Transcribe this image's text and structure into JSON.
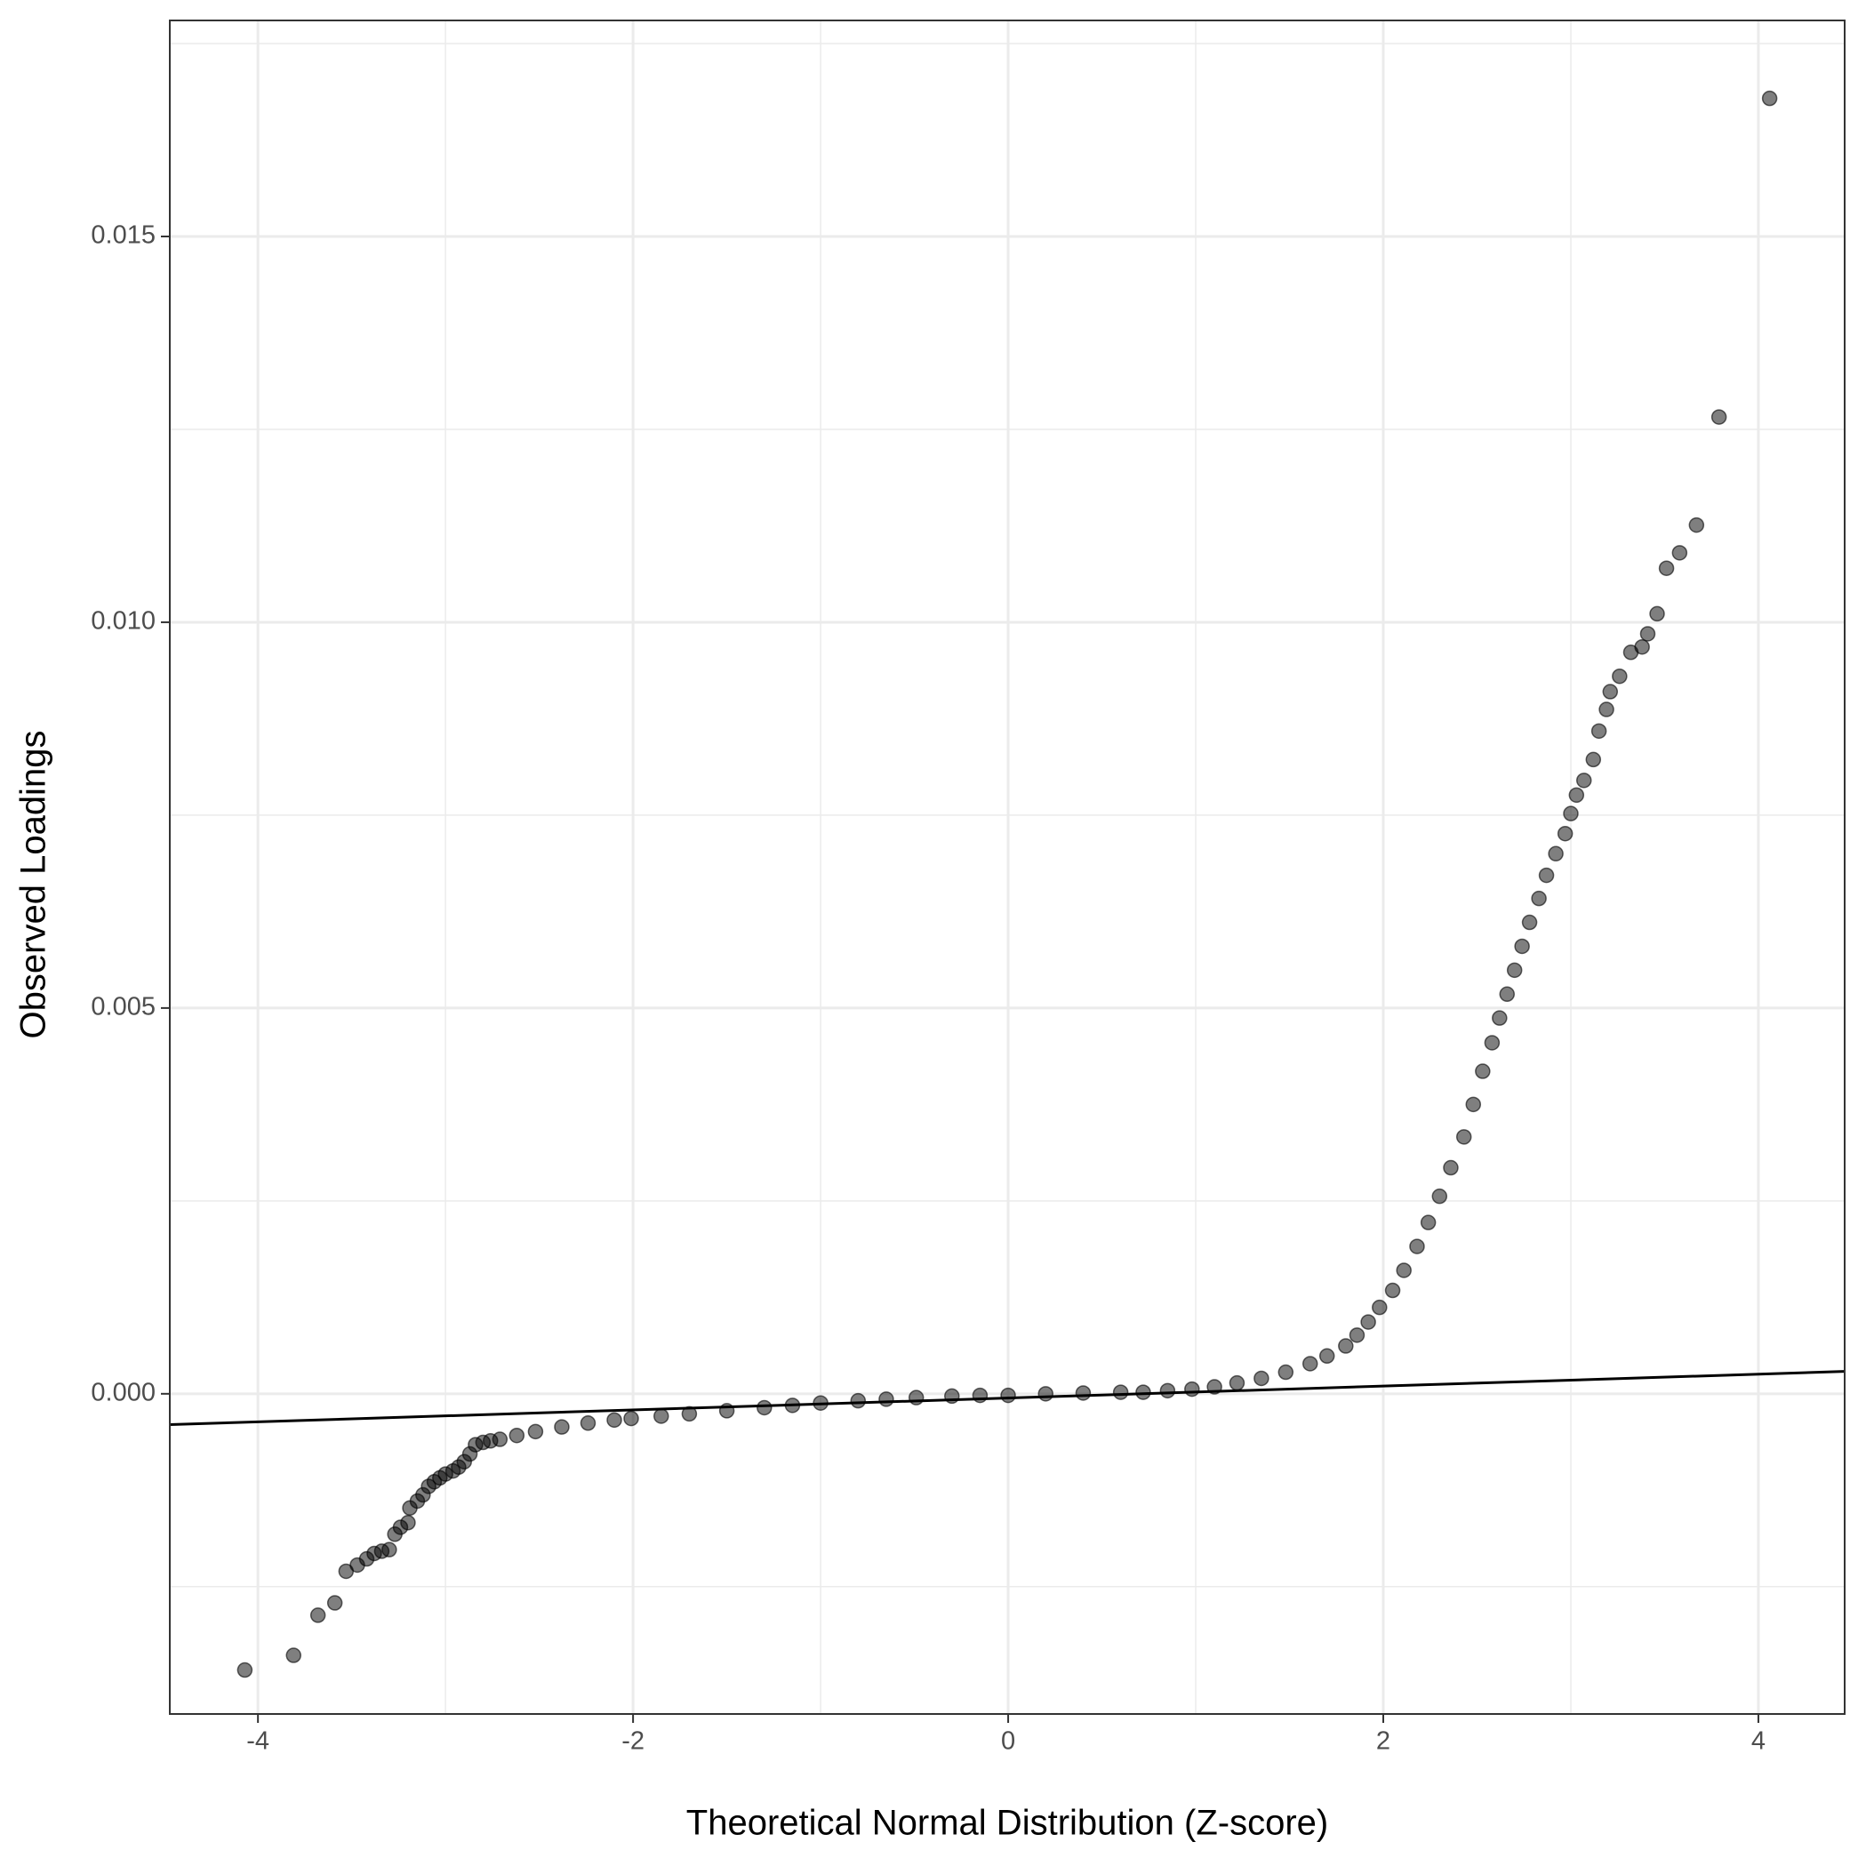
{
  "chart_data": {
    "type": "scatter",
    "x_label": "Theoretical Normal Distribution (Z-score)",
    "y_label": "Observed Loadings",
    "xlim": [
      -4.47,
      4.46
    ],
    "ylim": [
      -0.00415,
      0.0178
    ],
    "xticks": [
      -4,
      -2,
      0,
      2,
      4
    ],
    "x_minor_grid": [
      -3,
      -1,
      1,
      3
    ],
    "yticks": [
      {
        "value": 0,
        "label": "0.000"
      },
      {
        "value": 0.005,
        "label": "0.005"
      },
      {
        "value": 0.01,
        "label": "0.010"
      },
      {
        "value": 0.015,
        "label": "0.015"
      }
    ],
    "y_minor_grid": [
      -0.0025,
      0.0025,
      0.0075,
      0.0125,
      0.0175
    ],
    "grid": true,
    "color": "#000000",
    "reference_line": {
      "x": [
        -4.47,
        4.46
      ],
      "y": [
        -0.0004,
        0.00029
      ]
    },
    "series": [
      {
        "name": "Loadings",
        "color": "#000000",
        "x": [
          -4.07,
          -3.81,
          -3.68,
          -3.59,
          -3.53,
          -3.47,
          -3.42,
          -3.38,
          -3.34,
          -3.3,
          -3.27,
          -3.24,
          -3.2,
          -3.19,
          -3.15,
          -3.12,
          -3.09,
          -3.06,
          -3.03,
          -3.0,
          -2.96,
          -2.93,
          -2.9,
          -2.87,
          -2.84,
          -2.8,
          -2.76,
          -2.71,
          -2.62,
          -2.52,
          -2.38,
          -2.24,
          -2.1,
          -2.01,
          -1.85,
          -1.7,
          -1.5,
          -1.3,
          -1.15,
          -1.0,
          -0.8,
          -0.65,
          -0.49,
          -0.3,
          -0.15,
          0,
          0.2,
          0.4,
          0.6,
          0.72,
          0.85,
          0.98,
          1.1,
          1.22,
          1.35,
          1.48,
          1.61,
          1.7,
          1.8,
          1.86,
          1.92,
          1.98,
          2.05,
          2.11,
          2.18,
          2.24,
          2.3,
          2.36,
          2.43,
          2.48,
          2.53,
          2.58,
          2.62,
          2.66,
          2.7,
          2.74,
          2.78,
          2.83,
          2.87,
          2.92,
          2.97,
          3.0,
          3.03,
          3.07,
          3.12,
          3.15,
          3.19,
          3.21,
          3.26,
          3.32,
          3.38,
          3.41,
          3.46,
          3.51,
          3.58,
          3.67,
          3.79,
          4.06
        ],
        "values": [
          -0.00358,
          -0.00339,
          -0.00287,
          -0.00271,
          -0.0023,
          -0.00222,
          -0.00214,
          -0.00207,
          -0.00204,
          -0.00202,
          -0.00182,
          -0.00173,
          -0.00167,
          -0.00148,
          -0.00139,
          -0.00131,
          -0.0012,
          -0.00114,
          -0.00109,
          -0.00104,
          -0.001,
          -0.00095,
          -0.00088,
          -0.00078,
          -0.00066,
          -0.00063,
          -0.00061,
          -0.00059,
          -0.00054,
          -0.00049,
          -0.00043,
          -0.00038,
          -0.00034,
          -0.00032,
          -0.00029,
          -0.00026,
          -0.00022,
          -0.00018,
          -0.00015,
          -0.00012,
          -9e-05,
          -7e-05,
          -5e-05,
          -3e-05,
          -2e-05,
          -2e-05,
          0.0,
          1e-05,
          2e-05,
          2e-05,
          4e-05,
          6e-05,
          9e-05,
          0.00014,
          0.0002,
          0.00028,
          0.00039,
          0.00049,
          0.00062,
          0.00076,
          0.00093,
          0.00112,
          0.00134,
          0.0016,
          0.00191,
          0.00222,
          0.00256,
          0.00293,
          0.00333,
          0.00375,
          0.00418,
          0.00455,
          0.00487,
          0.00518,
          0.00549,
          0.0058,
          0.00611,
          0.00642,
          0.00672,
          0.007,
          0.00726,
          0.00752,
          0.00776,
          0.00795,
          0.00822,
          0.00859,
          0.00887,
          0.0091,
          0.0093,
          0.00961,
          0.00968,
          0.00985,
          0.01011,
          0.0107,
          0.0109,
          0.01126,
          0.01266,
          0.01679
        ]
      }
    ]
  }
}
